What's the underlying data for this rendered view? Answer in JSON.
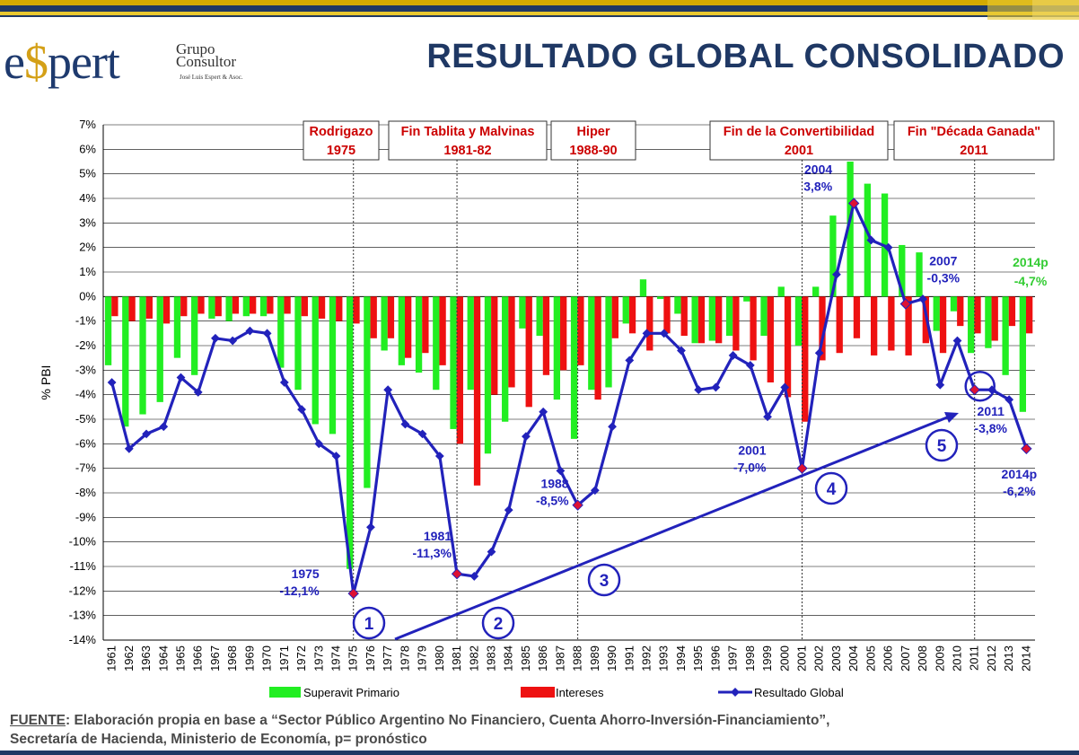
{
  "header": {
    "title": "RESULTADO GLOBAL CONSOLIDADO",
    "logo_text_e": "e",
    "logo_text_s": "$",
    "logo_text_rest": "pert",
    "logo_grupo": "Grupo",
    "logo_consultor": "Consultor",
    "logo_sub": "José Luis Espert & Asoc."
  },
  "colors": {
    "primary": "#22ee22",
    "interest": "#ee1111",
    "line": "#2222bb",
    "marker_red": "#dd1133",
    "title": "#1f3864",
    "annotation_red": "#cc0000",
    "annotation_green": "#33cc33"
  },
  "chart_data": {
    "type": "bar",
    "ylabel": "% PBI",
    "ylim": [
      -14,
      7
    ],
    "ytick_labels": [
      "7%",
      "6%",
      "5%",
      "4%",
      "3%",
      "2%",
      "1%",
      "0%",
      "-1%",
      "-2%",
      "-3%",
      "-4%",
      "-5%",
      "-6%",
      "-7%",
      "-8%",
      "-9%",
      "-10%",
      "-11%",
      "-12%",
      "-13%",
      "-14%"
    ],
    "categories": [
      "1961",
      "1962",
      "1963",
      "1964",
      "1965",
      "1966",
      "1967",
      "1968",
      "1969",
      "1970",
      "1971",
      "1972",
      "1973",
      "1974",
      "1975",
      "1976",
      "1977",
      "1978",
      "1979",
      "1980",
      "1981",
      "1982",
      "1983",
      "1984",
      "1985",
      "1986",
      "1987",
      "1988",
      "1989",
      "1990",
      "1991",
      "1992",
      "1993",
      "1994",
      "1995",
      "1996",
      "1997",
      "1998",
      "1999",
      "2000",
      "2001",
      "2002",
      "2003",
      "2004",
      "2005",
      "2006",
      "2007",
      "2008",
      "2009",
      "2010",
      "2011",
      "2012",
      "2013",
      "2014"
    ],
    "series": [
      {
        "name": "Superavit Primario",
        "type": "bar",
        "values": [
          -2.8,
          -5.3,
          -4.8,
          -4.3,
          -2.5,
          -3.2,
          -0.9,
          -1.0,
          -0.8,
          -0.8,
          -2.9,
          -3.8,
          -5.2,
          -5.6,
          -11.1,
          -7.8,
          -2.2,
          -2.8,
          -3.1,
          -3.8,
          -5.4,
          -3.8,
          -6.4,
          -5.1,
          -1.3,
          -1.6,
          -4.2,
          -5.8,
          -3.8,
          -3.7,
          -1.1,
          0.7,
          -0.1,
          -0.7,
          -1.9,
          -1.8,
          -1.6,
          -0.2,
          -1.6,
          0.4,
          -2.0,
          0.4,
          3.3,
          5.5,
          4.6,
          4.2,
          2.1,
          1.8,
          -1.4,
          -0.6,
          -2.3,
          -2.1,
          -3.2,
          -4.7
        ]
      },
      {
        "name": "Intereses",
        "type": "bar",
        "values": [
          -0.8,
          -1.0,
          -0.9,
          -1.1,
          -0.8,
          -0.7,
          -0.8,
          -0.7,
          -0.7,
          -0.7,
          -0.7,
          -0.8,
          -0.9,
          -1.0,
          -1.1,
          -1.7,
          -1.7,
          -2.5,
          -2.3,
          -2.8,
          -6.0,
          -7.7,
          -4.0,
          -3.7,
          -4.5,
          -3.2,
          -3.0,
          -2.8,
          -4.2,
          -1.7,
          -1.5,
          -2.2,
          -1.5,
          -1.6,
          -1.9,
          -1.9,
          -2.2,
          -2.6,
          -3.5,
          -4.1,
          -5.1,
          -2.6,
          -2.3,
          -1.7,
          -2.4,
          -2.2,
          -2.4,
          -1.9,
          -2.3,
          -1.2,
          -1.5,
          -1.8,
          -1.2,
          -1.5
        ]
      },
      {
        "name": "Resultado Global",
        "type": "line",
        "values": [
          -3.5,
          -6.2,
          -5.6,
          -5.3,
          -3.3,
          -3.9,
          -1.7,
          -1.8,
          -1.4,
          -1.5,
          -3.5,
          -4.6,
          -6.0,
          -6.5,
          -12.1,
          -9.4,
          -3.8,
          -5.2,
          -5.6,
          -6.5,
          -11.3,
          -11.4,
          -10.4,
          -8.7,
          -5.7,
          -4.7,
          -7.1,
          -8.5,
          -7.9,
          -5.3,
          -2.6,
          -1.5,
          -1.5,
          -2.2,
          -3.8,
          -3.7,
          -2.4,
          -2.8,
          -4.9,
          -3.7,
          -7.0,
          -2.3,
          0.9,
          3.8,
          2.3,
          2.0,
          -0.3,
          -0.1,
          -3.6,
          -1.8,
          -3.8,
          -3.8,
          -4.2,
          -6.2
        ]
      }
    ],
    "highlight_points": [
      {
        "year": "1975",
        "value": -12.1,
        "label_year": "1975",
        "label_value": "-12,1%"
      },
      {
        "year": "1981",
        "value": -11.3,
        "label_year": "1981",
        "label_value": "-11,3%"
      },
      {
        "year": "1988",
        "value": -8.5,
        "label_year": "1988",
        "label_value": "-8,5%"
      },
      {
        "year": "2001",
        "value": -7.0,
        "label_year": "2001",
        "label_value": "-7,0%"
      },
      {
        "year": "2004",
        "value": 3.8,
        "label_year": "2004",
        "label_value": "3,8%"
      },
      {
        "year": "2007",
        "value": -0.3,
        "label_year": "2007",
        "label_value": "-0,3%"
      },
      {
        "year": "2011",
        "value": -3.8,
        "label_year": "2011",
        "label_value": "-3,8%"
      },
      {
        "year": "2014",
        "value": -6.2,
        "label_year": "2014p",
        "label_value": "-6,2%"
      }
    ],
    "primary_2014_label": {
      "year": "2014p",
      "value": "-4,7%"
    },
    "event_boxes": [
      {
        "line1": "Rodrigazo",
        "line2": "1975",
        "year": "1975"
      },
      {
        "line1": "Fin Tablita y Malvinas",
        "line2": "1981-82",
        "year": "1981"
      },
      {
        "line1": "Hiper",
        "line2": "1988-90",
        "year": "1988"
      },
      {
        "line1": "Fin de la Convertibilidad",
        "line2": "2001",
        "year": "2001"
      },
      {
        "line1": "Fin \"Década Ganada\"",
        "line2": "2011",
        "year": "2011"
      }
    ],
    "period_markers": [
      "1",
      "2",
      "3",
      "4",
      "5"
    ],
    "legend": [
      "Superavit Primario",
      "Intereses",
      "Resultado Global"
    ],
    "grid": true
  },
  "footer": {
    "source_label": "FUENTE",
    "line1": ": Elaboración propia en base a “Sector Público Argentino No Financiero, Cuenta Ahorro-Inversión-Financiamiento”,",
    "line2": "Secretaría de Hacienda, Ministerio de Economía, p= pronóstico"
  }
}
